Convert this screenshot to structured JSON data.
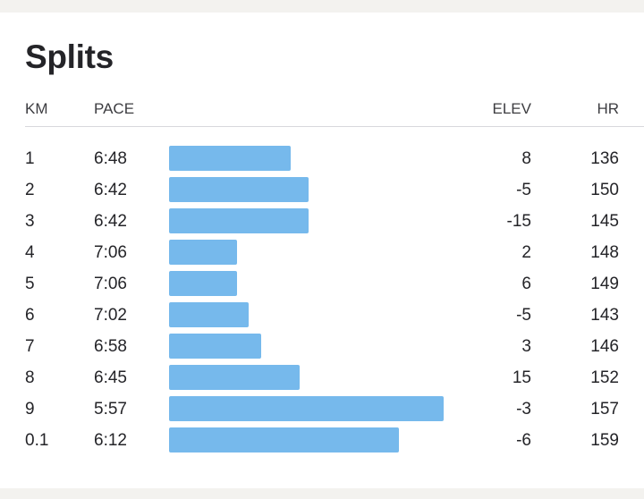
{
  "title": "Splits",
  "columns": {
    "km": "KM",
    "pace": "PACE",
    "elev": "ELEV",
    "hr": "HR"
  },
  "colors": {
    "bar": "#76b9ec",
    "background": "#f3f2ef",
    "card": "#ffffff"
  },
  "splits": [
    {
      "km": "1",
      "pace": "6:48",
      "elev": "8",
      "hr": "136"
    },
    {
      "km": "2",
      "pace": "6:42",
      "elev": "-5",
      "hr": "150"
    },
    {
      "km": "3",
      "pace": "6:42",
      "elev": "-15",
      "hr": "145"
    },
    {
      "km": "4",
      "pace": "7:06",
      "elev": "2",
      "hr": "148"
    },
    {
      "km": "5",
      "pace": "7:06",
      "elev": "6",
      "hr": "149"
    },
    {
      "km": "6",
      "pace": "7:02",
      "elev": "-5",
      "hr": "143"
    },
    {
      "km": "7",
      "pace": "6:58",
      "elev": "3",
      "hr": "146"
    },
    {
      "km": "8",
      "pace": "6:45",
      "elev": "15",
      "hr": "152"
    },
    {
      "km": "9",
      "pace": "5:57",
      "elev": "-3",
      "hr": "157"
    },
    {
      "km": "0.1",
      "pace": "6:12",
      "elev": "-6",
      "hr": "159"
    }
  ]
}
